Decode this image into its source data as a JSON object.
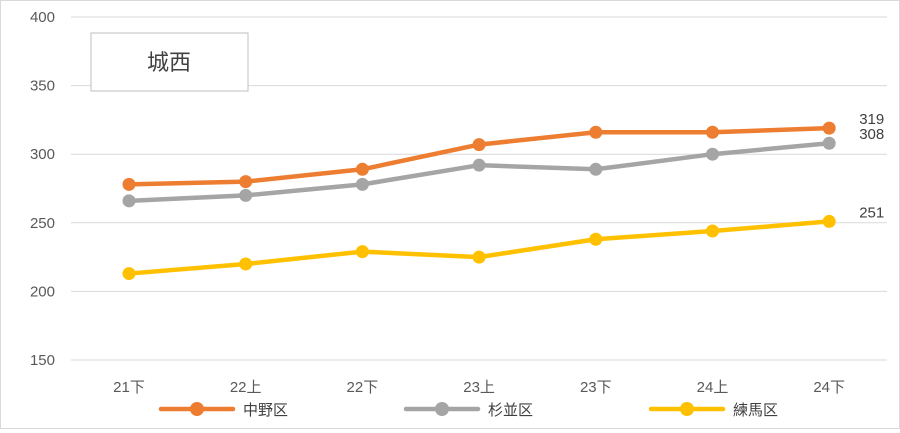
{
  "chart_data": {
    "type": "line",
    "title": "城西",
    "categories": [
      "21下",
      "22上",
      "22下",
      "23上",
      "23下",
      "24上",
      "24下"
    ],
    "y_ticks": [
      150,
      200,
      250,
      300,
      350,
      400
    ],
    "ylim": [
      150,
      400
    ],
    "grid": "horizontal",
    "legend_position": "bottom",
    "series": [
      {
        "name": "中野区",
        "color": "#ED7D31",
        "values": [
          278,
          280,
          289,
          307,
          316,
          316,
          319
        ],
        "end_label": "319"
      },
      {
        "name": "杉並区",
        "color": "#A5A5A5",
        "values": [
          266,
          270,
          278,
          292,
          289,
          300,
          308
        ],
        "end_label": "308"
      },
      {
        "name": "練馬区",
        "color": "#FFC000",
        "values": [
          213,
          220,
          229,
          225,
          238,
          244,
          251
        ],
        "end_label": "251"
      }
    ]
  }
}
